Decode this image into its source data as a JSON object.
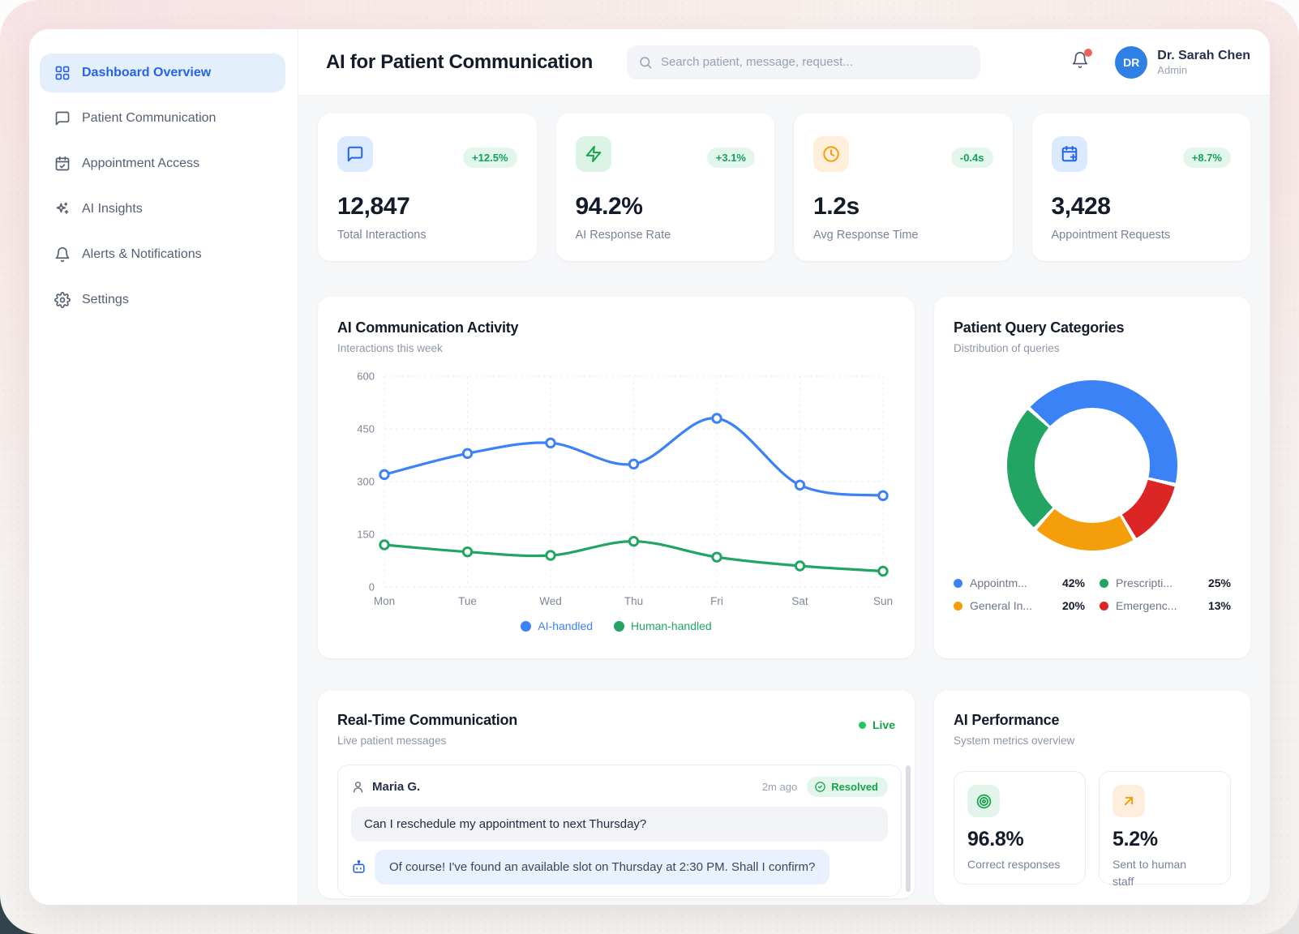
{
  "app": {
    "title": "AI for Patient Communication",
    "search_placeholder": "Search patient, message, request...",
    "user": {
      "initials": "DR",
      "name": "Dr. Sarah Chen",
      "role": "Admin"
    }
  },
  "sidebar": {
    "items": [
      {
        "label": "Dashboard Overview",
        "icon": "dashboard-grid",
        "active": true
      },
      {
        "label": "Patient Communication",
        "icon": "chat-bubble",
        "active": false
      },
      {
        "label": "Appointment Access",
        "icon": "calendar-check",
        "active": false
      },
      {
        "label": "AI Insights",
        "icon": "sparkles",
        "active": false
      },
      {
        "label": "Alerts & Notifications",
        "icon": "bell",
        "active": false
      },
      {
        "label": "Settings",
        "icon": "gear",
        "active": false
      }
    ]
  },
  "stats": [
    {
      "value": "12,847",
      "label": "Total Interactions",
      "delta": "+12.5%",
      "icon": "chat",
      "accent": "#2563eb",
      "tile_bg": "#dbeafe"
    },
    {
      "value": "94.2%",
      "label": "AI Response Rate",
      "delta": "+3.1%",
      "icon": "zap",
      "accent": "#16a34a",
      "tile_bg": "#daf3e5"
    },
    {
      "value": "1.2s",
      "label": "Avg Response Time",
      "delta": "-0.4s",
      "icon": "clock",
      "accent": "#f59e0b",
      "tile_bg": "#feeeda"
    },
    {
      "value": "3,428",
      "label": "Appointment Requests",
      "delta": "+8.7%",
      "icon": "calendar-plus",
      "accent": "#2563eb",
      "tile_bg": "#dbeafe"
    }
  ],
  "chart_data": [
    {
      "type": "line",
      "title": "AI Communication Activity",
      "subtitle": "Interactions this week",
      "x": [
        "Mon",
        "Tue",
        "Wed",
        "Thu",
        "Fri",
        "Sat",
        "Sun"
      ],
      "series": [
        {
          "name": "AI-handled",
          "color": "#3b82f6",
          "values": [
            320,
            380,
            410,
            350,
            480,
            290,
            260
          ]
        },
        {
          "name": "Human-handled",
          "color": "#22a562",
          "values": [
            120,
            100,
            90,
            130,
            85,
            60,
            45
          ]
        }
      ],
      "ylim": [
        0,
        600
      ],
      "yticks": [
        0,
        150,
        300,
        450,
        600
      ],
      "grid": true,
      "legend_position": "bottom"
    },
    {
      "type": "pie",
      "donut": true,
      "title": "Patient Query Categories",
      "subtitle": "Distribution of queries",
      "start_angle": -48,
      "draw_sequence": [
        0,
        3,
        2,
        1
      ],
      "slices": [
        {
          "label": "Appointm...",
          "value": 42,
          "pct": "42%",
          "color": "#3b82f6"
        },
        {
          "label": "Prescripti...",
          "value": 25,
          "pct": "25%",
          "color": "#22a562"
        },
        {
          "label": "General In...",
          "value": 20,
          "pct": "20%",
          "color": "#f59e0b"
        },
        {
          "label": "Emergenc...",
          "value": 13,
          "pct": "13%",
          "color": "#dc2626"
        }
      ]
    }
  ],
  "realtime": {
    "title": "Real-Time Communication",
    "subtitle": "Live patient messages",
    "live_label": "Live",
    "messages": [
      {
        "sender": "Maria G.",
        "time": "2m ago",
        "status": "Resolved",
        "patient_message": "Can I reschedule my appointment to next Thursday?",
        "ai_reply": "Of course! I've found an available slot on Thursday at 2:30 PM. Shall I confirm?"
      }
    ]
  },
  "performance": {
    "title": "AI Performance",
    "subtitle": "System metrics overview",
    "metrics": [
      {
        "value": "96.8%",
        "label": "Correct responses",
        "icon": "target",
        "accent": "#16a34a",
        "tile_bg": "#e3f4ea"
      },
      {
        "value": "5.2%",
        "label": "Sent to human staff",
        "icon": "arrow-up-right",
        "accent": "#f59e0b",
        "tile_bg": "#fdeede"
      }
    ]
  }
}
